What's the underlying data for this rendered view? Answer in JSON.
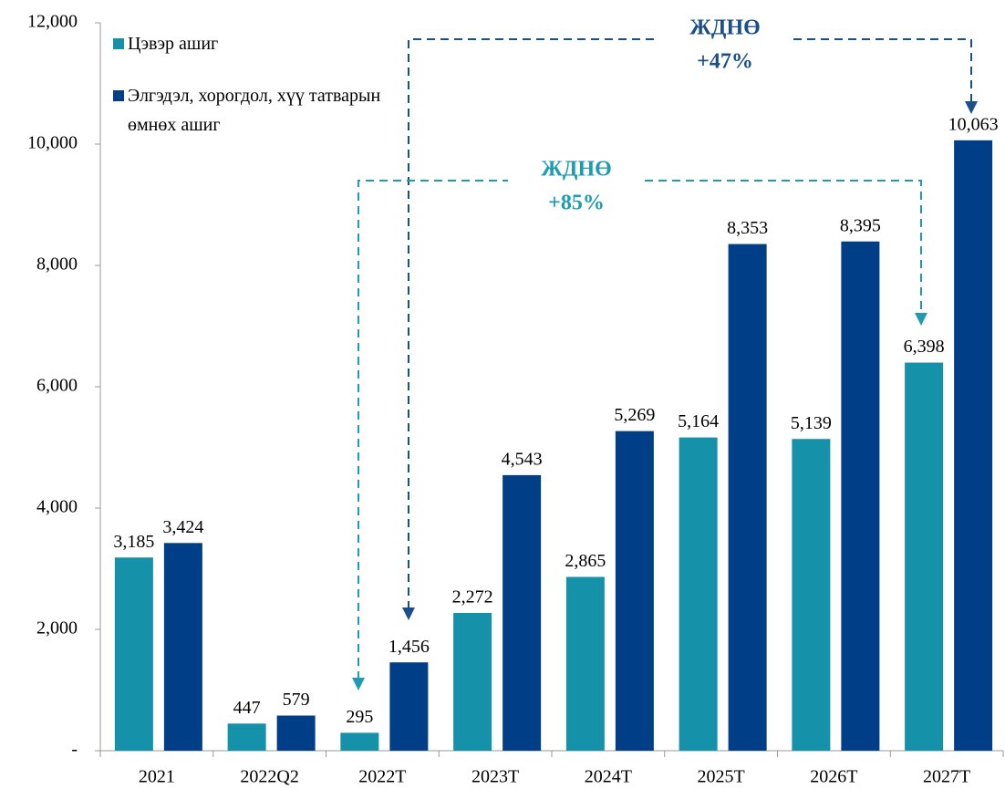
{
  "chart_data": {
    "type": "bar",
    "categories": [
      "2021",
      "2022Q2",
      "2022T",
      "2023T",
      "2024T",
      "2025T",
      "2026T",
      "2027T"
    ],
    "series": [
      {
        "name": "Цэвэр ашиг",
        "color": "#1591a9",
        "values": [
          3185,
          447,
          295,
          2272,
          2865,
          5164,
          5139,
          6398
        ],
        "value_labels": [
          "3,185",
          "447",
          "295",
          "2,272",
          "2,865",
          "5,164",
          "5,139",
          "6,398"
        ]
      },
      {
        "name": "Элгэдэл, хорогдол, хүү татварын өмнөх ашиг",
        "color": "#003f87",
        "values": [
          3424,
          579,
          1456,
          4543,
          5269,
          8353,
          8395,
          10063
        ],
        "value_labels": [
          "3,424",
          "579",
          "1,456",
          "4,543",
          "5,269",
          "8,353",
          "8,395",
          "10,063"
        ]
      }
    ],
    "ylim": [
      0,
      12000
    ],
    "yticks": [
      {
        "value": 0,
        "label": "-"
      },
      {
        "value": 2000,
        "label": "2,000"
      },
      {
        "value": 4000,
        "label": "4,000"
      },
      {
        "value": 6000,
        "label": "6,000"
      },
      {
        "value": 8000,
        "label": "8,000"
      },
      {
        "value": 10000,
        "label": "10,000"
      },
      {
        "value": 12000,
        "label": "12,000"
      }
    ],
    "grid": false,
    "legend": "top-left",
    "annotations": [
      {
        "label": "ЖДНӨ",
        "value": "+47%",
        "color": "#1b4f8c"
      },
      {
        "label": "ЖДНӨ",
        "value": "+85%",
        "color": "#1f9bb1"
      }
    ]
  }
}
